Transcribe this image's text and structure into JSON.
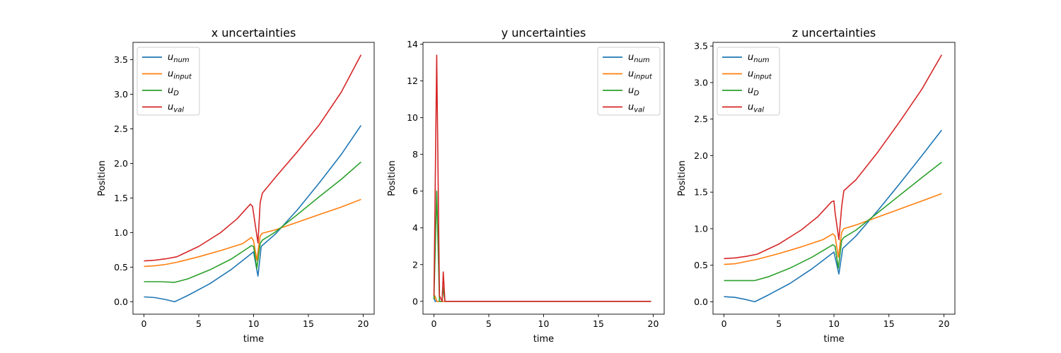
{
  "chart_data": [
    {
      "type": "line",
      "title": "x uncertainties",
      "xlabel": "time",
      "ylabel": "Position",
      "xlim": [
        -1,
        21
      ],
      "ylim": [
        -0.18,
        3.75
      ],
      "xticks": [
        0,
        5,
        10,
        15,
        20
      ],
      "yticks": [
        "0.0",
        "0.5",
        "1.0",
        "1.5",
        "2.0",
        "2.5",
        "3.0",
        "3.5"
      ],
      "legend_position": "upper-left",
      "grid": false,
      "series": [
        {
          "name": "u",
          "sub": "num",
          "color": "#1f77b4",
          "x": [
            0,
            1,
            2,
            2.8,
            4,
            6,
            8,
            10,
            10.4,
            10.7,
            12,
            14,
            16,
            18,
            19.8
          ],
          "y": [
            0.07,
            0.06,
            0.03,
            0.0,
            0.09,
            0.26,
            0.47,
            0.72,
            0.37,
            0.8,
            0.98,
            1.33,
            1.72,
            2.13,
            2.55
          ]
        },
        {
          "name": "u",
          "sub": "input",
          "color": "#ff7f0e",
          "x": [
            0,
            1,
            2,
            3,
            5,
            7,
            9,
            9.8,
            10.0,
            10.3,
            10.6,
            10.8,
            12,
            14,
            16,
            18,
            19.8
          ],
          "y": [
            0.51,
            0.52,
            0.54,
            0.57,
            0.65,
            0.74,
            0.84,
            0.93,
            0.88,
            0.6,
            0.95,
            0.99,
            1.04,
            1.15,
            1.26,
            1.37,
            1.48
          ]
        },
        {
          "name": "u",
          "sub": "D",
          "color": "#2ca02c",
          "x": [
            0,
            1.5,
            2.8,
            4,
            6,
            8,
            9.8,
            10.0,
            10.3,
            10.6,
            10.8,
            12,
            14,
            16,
            18,
            19.8
          ],
          "y": [
            0.29,
            0.29,
            0.28,
            0.33,
            0.46,
            0.62,
            0.81,
            0.8,
            0.48,
            0.84,
            0.89,
            1.01,
            1.26,
            1.52,
            1.77,
            2.02
          ]
        },
        {
          "name": "u",
          "sub": "val",
          "color": "#d62728",
          "x": [
            0,
            1,
            2,
            3,
            5,
            7,
            8.5,
            9.7,
            9.9,
            10.4,
            10.6,
            10.8,
            12,
            14,
            16,
            18,
            19.8
          ],
          "y": [
            0.59,
            0.6,
            0.62,
            0.65,
            0.8,
            1.0,
            1.2,
            1.41,
            1.38,
            0.85,
            1.43,
            1.57,
            1.8,
            2.17,
            2.56,
            3.03,
            3.57
          ]
        }
      ]
    },
    {
      "type": "line",
      "title": "y uncertainties",
      "xlabel": "time",
      "ylabel": "Position",
      "xlim": [
        -1,
        21
      ],
      "ylim": [
        -0.7,
        14.1
      ],
      "xticks": [
        0,
        5,
        10,
        15,
        20
      ],
      "yticks": [
        "0",
        "2",
        "4",
        "6",
        "8",
        "10",
        "12",
        "14"
      ],
      "legend_position": "upper-right",
      "grid": false,
      "series": [
        {
          "name": "u",
          "sub": "num",
          "color": "#1f77b4",
          "x": [
            0,
            0.1,
            0.25,
            1,
            5,
            10,
            15,
            19.8
          ],
          "y": [
            0.3,
            0.0,
            0.0,
            0.0,
            0.0,
            0.0,
            0.0,
            0.0
          ]
        },
        {
          "name": "u",
          "sub": "input",
          "color": "#ff7f0e",
          "x": [
            0,
            0.1,
            0.25,
            0.4,
            1,
            5,
            10,
            15,
            19.8
          ],
          "y": [
            0.1,
            0.3,
            0.0,
            0.0,
            0.0,
            0.0,
            0.0,
            0.0,
            0.0
          ]
        },
        {
          "name": "u",
          "sub": "D",
          "color": "#2ca02c",
          "x": [
            0,
            0.25,
            0.5,
            0.75,
            0.8,
            1,
            5,
            10,
            15,
            19.8
          ],
          "y": [
            0.1,
            6.0,
            0.0,
            0.0,
            0.8,
            0.0,
            0.0,
            0.0,
            0.0,
            0.0
          ]
        },
        {
          "name": "u",
          "sub": "val",
          "color": "#d62728",
          "x": [
            0,
            0.25,
            0.5,
            0.75,
            0.85,
            1.0,
            5,
            10,
            15,
            19.8
          ],
          "y": [
            0.3,
            13.4,
            0.3,
            0.0,
            1.6,
            0.0,
            0.0,
            0.0,
            0.0,
            0.0
          ]
        }
      ]
    },
    {
      "type": "line",
      "title": "z uncertainties",
      "xlabel": "time",
      "ylabel": "Position",
      "xlim": [
        -1,
        21
      ],
      "ylim": [
        -0.17,
        3.55
      ],
      "xticks": [
        0,
        5,
        10,
        15,
        20
      ],
      "yticks": [
        "0.0",
        "0.5",
        "1.0",
        "1.5",
        "2.0",
        "2.5",
        "3.0",
        "3.5"
      ],
      "legend_position": "upper-left",
      "grid": false,
      "series": [
        {
          "name": "u",
          "sub": "num",
          "color": "#1f77b4",
          "x": [
            0,
            1,
            2,
            2.8,
            4,
            6,
            8,
            10,
            10.45,
            10.8,
            12,
            14,
            16,
            18,
            19.8
          ],
          "y": [
            0.07,
            0.06,
            0.03,
            0.0,
            0.09,
            0.25,
            0.45,
            0.68,
            0.38,
            0.73,
            0.9,
            1.25,
            1.62,
            2.0,
            2.35
          ]
        },
        {
          "name": "u",
          "sub": "input",
          "color": "#ff7f0e",
          "x": [
            0,
            1,
            2,
            3,
            5,
            7,
            9,
            9.9,
            10.1,
            10.4,
            10.7,
            10.9,
            12,
            14,
            16,
            18,
            19.8
          ],
          "y": [
            0.51,
            0.52,
            0.55,
            0.58,
            0.66,
            0.75,
            0.85,
            0.93,
            0.9,
            0.61,
            0.95,
            1.0,
            1.05,
            1.16,
            1.27,
            1.38,
            1.48
          ]
        },
        {
          "name": "u",
          "sub": "D",
          "color": "#2ca02c",
          "x": [
            0,
            1.5,
            2.8,
            4,
            6,
            8,
            9.9,
            10.1,
            10.4,
            10.7,
            10.9,
            12,
            14,
            16,
            18,
            19.8
          ],
          "y": [
            0.29,
            0.29,
            0.29,
            0.34,
            0.46,
            0.61,
            0.78,
            0.76,
            0.46,
            0.84,
            0.88,
            0.98,
            1.22,
            1.46,
            1.7,
            1.91
          ]
        },
        {
          "name": "u",
          "sub": "val",
          "color": "#d62728",
          "x": [
            0,
            1,
            2,
            3,
            5,
            7,
            8.5,
            9.8,
            10.0,
            10.1,
            10.45,
            10.7,
            10.9,
            12,
            14,
            16,
            18,
            19.8
          ],
          "y": [
            0.59,
            0.6,
            0.62,
            0.65,
            0.79,
            0.98,
            1.16,
            1.37,
            1.38,
            1.22,
            0.85,
            1.3,
            1.52,
            1.67,
            2.05,
            2.47,
            2.91,
            3.38
          ]
        }
      ]
    }
  ]
}
